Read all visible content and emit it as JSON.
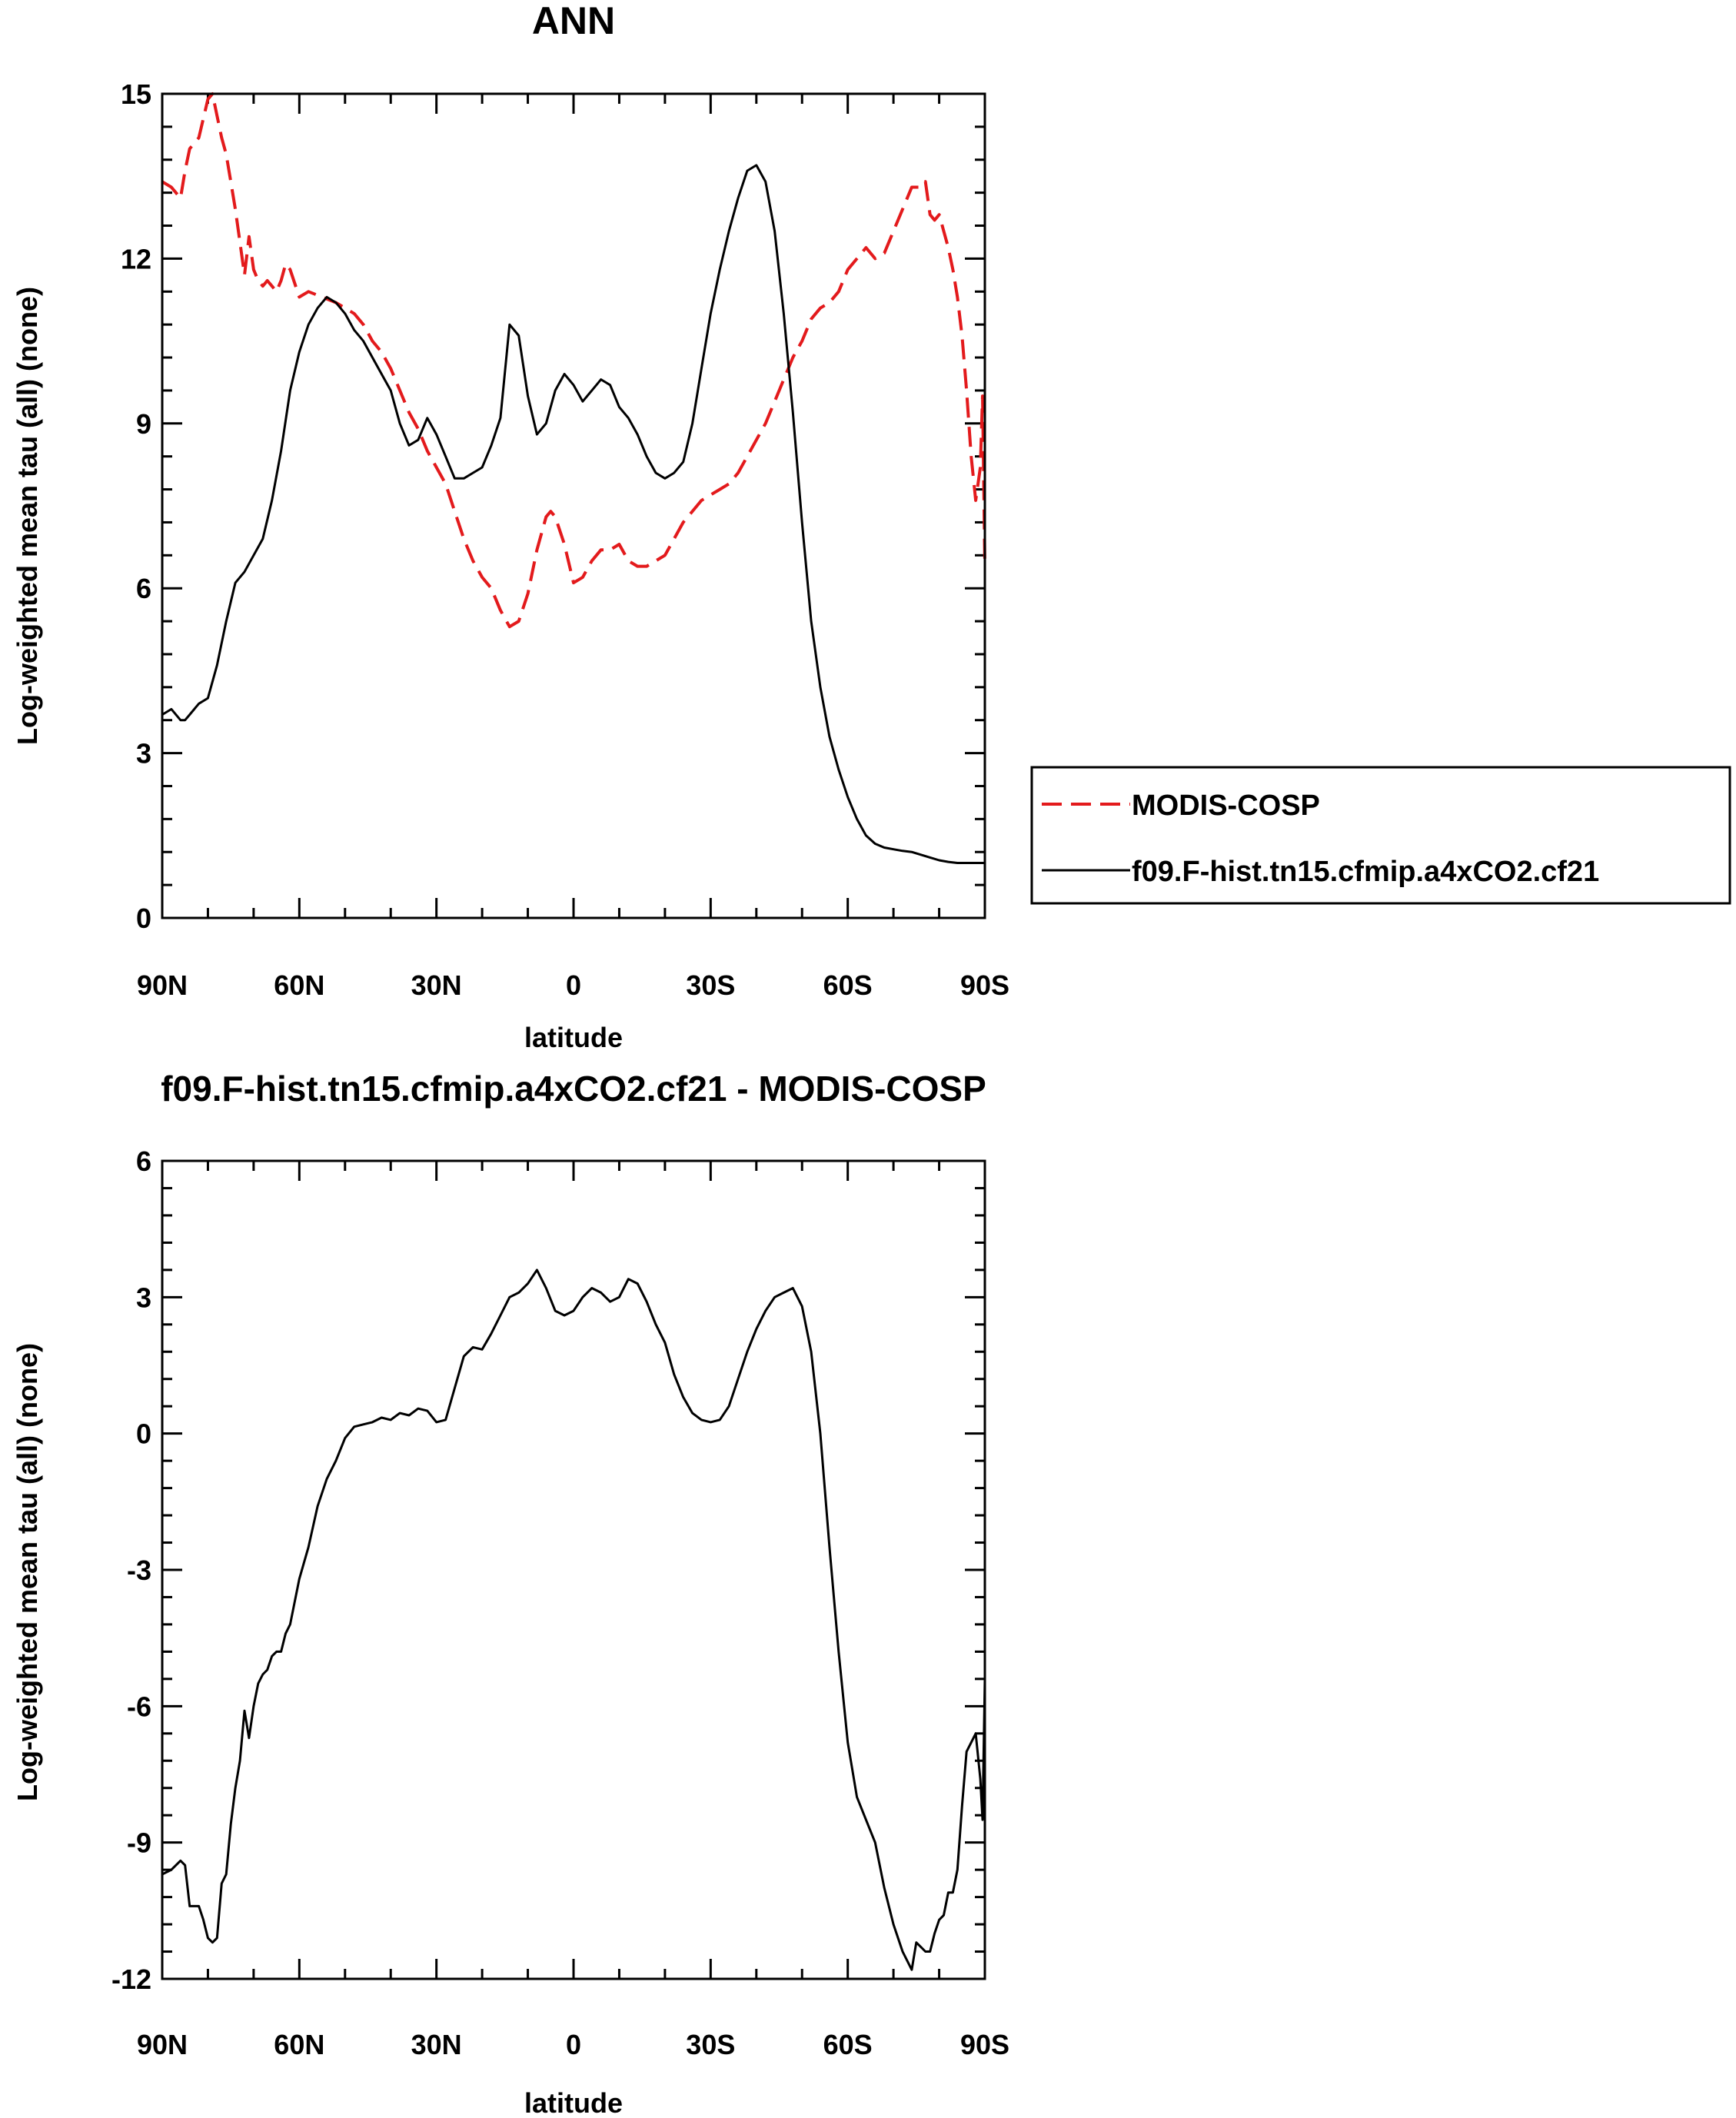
{
  "chart_data": [
    {
      "type": "line",
      "title": "ANN",
      "xlabel": "latitude",
      "ylabel": "Log-weighted mean tau (all) (none)",
      "xlim": [
        -90,
        90
      ],
      "ylim": [
        0,
        15
      ],
      "xticks": [
        {
          "value": -90,
          "label": "90N"
        },
        {
          "value": -60,
          "label": "60N"
        },
        {
          "value": -30,
          "label": "30N"
        },
        {
          "value": 0,
          "label": "0"
        },
        {
          "value": 30,
          "label": "30S"
        },
        {
          "value": 60,
          "label": "60S"
        },
        {
          "value": 90,
          "label": "90S"
        }
      ],
      "yticks": [
        {
          "value": 0,
          "label": "0"
        },
        {
          "value": 3,
          "label": "3"
        },
        {
          "value": 6,
          "label": "6"
        },
        {
          "value": 9,
          "label": "9"
        },
        {
          "value": 12,
          "label": "12"
        },
        {
          "value": 15,
          "label": "15"
        }
      ],
      "grid": false,
      "legend": "right",
      "series": [
        {
          "name": "MODIS-COSP",
          "color": "#e31a1c",
          "dash": "dashed",
          "x": [
            -90,
            -88,
            -86,
            -85,
            -84,
            -82,
            -80,
            -79,
            -78,
            -77,
            -76,
            -75,
            -74,
            -73,
            -72,
            -71,
            -70,
            -69,
            -68,
            -67,
            -66,
            -65,
            -64,
            -63,
            -62,
            -60,
            -58,
            -55,
            -52,
            -50,
            -48,
            -46,
            -44,
            -42,
            -40,
            -38,
            -36,
            -34,
            -32,
            -30,
            -28,
            -26,
            -24,
            -22,
            -20,
            -18,
            -16,
            -14,
            -12,
            -10,
            -8,
            -6,
            -5,
            -4,
            -2,
            0,
            2,
            4,
            6,
            8,
            10,
            12,
            14,
            16,
            18,
            20,
            22,
            24,
            26,
            28,
            30,
            32,
            34,
            36,
            38,
            40,
            42,
            44,
            46,
            48,
            50,
            52,
            54,
            56,
            58,
            60,
            62,
            64,
            66,
            68,
            70,
            72,
            74,
            76,
            77,
            78,
            79,
            80,
            81,
            82,
            83,
            84,
            85,
            86,
            87,
            88,
            89,
            89.5,
            90
          ],
          "y": [
            13.4,
            13.3,
            13.1,
            13.6,
            14.0,
            14.2,
            14.9,
            15.0,
            14.6,
            14.2,
            13.9,
            13.4,
            12.9,
            12.3,
            11.7,
            12.4,
            11.8,
            11.6,
            11.5,
            11.6,
            11.5,
            11.4,
            11.6,
            11.9,
            11.8,
            11.3,
            11.4,
            11.3,
            11.2,
            11.1,
            11.0,
            10.8,
            10.5,
            10.3,
            10.0,
            9.6,
            9.2,
            8.9,
            8.5,
            8.2,
            7.9,
            7.4,
            6.9,
            6.5,
            6.2,
            6.0,
            5.6,
            5.3,
            5.4,
            5.9,
            6.7,
            7.3,
            7.4,
            7.3,
            6.8,
            6.1,
            6.2,
            6.5,
            6.7,
            6.7,
            6.8,
            6.5,
            6.4,
            6.4,
            6.5,
            6.6,
            6.9,
            7.2,
            7.4,
            7.6,
            7.7,
            7.8,
            7.9,
            8.1,
            8.4,
            8.7,
            9.0,
            9.4,
            9.8,
            10.2,
            10.5,
            10.9,
            11.1,
            11.2,
            11.4,
            11.8,
            12.0,
            12.2,
            12.0,
            12.1,
            12.5,
            12.9,
            13.3,
            13.3,
            13.4,
            12.8,
            12.7,
            12.8,
            12.5,
            12.2,
            11.8,
            11.3,
            10.6,
            9.6,
            8.4,
            7.6,
            8.2,
            9.5,
            6.4
          ]
        },
        {
          "name": "f09.F-hist.tn15.cfmip.a4xCO2.cf21",
          "color": "#000000",
          "dash": "solid",
          "x": [
            -90,
            -88,
            -86,
            -85,
            -84,
            -82,
            -80,
            -78,
            -76,
            -74,
            -72,
            -70,
            -68,
            -66,
            -64,
            -62,
            -60,
            -58,
            -56,
            -54,
            -52,
            -50,
            -48,
            -46,
            -44,
            -42,
            -40,
            -38,
            -36,
            -34,
            -32,
            -30,
            -28,
            -26,
            -24,
            -22,
            -20,
            -18,
            -16,
            -14,
            -12,
            -10,
            -8,
            -6,
            -4,
            -2,
            0,
            2,
            4,
            6,
            8,
            10,
            12,
            14,
            16,
            18,
            20,
            22,
            24,
            26,
            28,
            30,
            32,
            34,
            36,
            38,
            40,
            42,
            44,
            46,
            48,
            50,
            52,
            54,
            56,
            58,
            60,
            62,
            64,
            66,
            68,
            70,
            72,
            74,
            76,
            78,
            80,
            82,
            84,
            86,
            88,
            90
          ],
          "y": [
            3.7,
            3.8,
            3.6,
            3.6,
            3.7,
            3.9,
            4.0,
            4.6,
            5.4,
            6.1,
            6.3,
            6.6,
            6.9,
            7.6,
            8.5,
            9.6,
            10.3,
            10.8,
            11.1,
            11.3,
            11.2,
            11.0,
            10.7,
            10.5,
            10.2,
            9.9,
            9.6,
            9.0,
            8.6,
            8.7,
            9.1,
            8.8,
            8.4,
            8.0,
            8.0,
            8.1,
            8.2,
            8.6,
            9.1,
            10.8,
            10.6,
            9.5,
            8.8,
            9.0,
            9.6,
            9.9,
            9.7,
            9.4,
            9.6,
            9.8,
            9.7,
            9.3,
            9.1,
            8.8,
            8.4,
            8.1,
            8.0,
            8.1,
            8.3,
            9.0,
            10.0,
            11.0,
            11.8,
            12.5,
            13.1,
            13.6,
            13.7,
            13.4,
            12.5,
            11.0,
            9.2,
            7.2,
            5.4,
            4.2,
            3.3,
            2.7,
            2.2,
            1.8,
            1.5,
            1.35,
            1.28,
            1.25,
            1.22,
            1.2,
            1.15,
            1.1,
            1.05,
            1.02,
            1.0,
            1.0,
            1.0,
            1.0
          ]
        }
      ]
    },
    {
      "type": "line",
      "title": "f09.F-hist.tn15.cfmip.a4xCO2.cf21 - MODIS-COSP",
      "xlabel": "latitude",
      "ylabel": "Log-weighted mean tau (all) (none)",
      "xlim": [
        -90,
        90
      ],
      "ylim": [
        -12,
        6
      ],
      "xticks": [
        {
          "value": -90,
          "label": "90N"
        },
        {
          "value": -60,
          "label": "60N"
        },
        {
          "value": -30,
          "label": "30N"
        },
        {
          "value": 0,
          "label": "0"
        },
        {
          "value": 30,
          "label": "30S"
        },
        {
          "value": 60,
          "label": "60S"
        },
        {
          "value": 90,
          "label": "90S"
        }
      ],
      "yticks": [
        {
          "value": -12,
          "label": "-12"
        },
        {
          "value": -9,
          "label": "-9"
        },
        {
          "value": -6,
          "label": "-6"
        },
        {
          "value": -3,
          "label": "-3"
        },
        {
          "value": 0,
          "label": "0"
        },
        {
          "value": 3,
          "label": "3"
        },
        {
          "value": 6,
          "label": "6"
        }
      ],
      "grid": false,
      "series": [
        {
          "name": "",
          "color": "#000000",
          "dash": "solid",
          "x": [
            -90,
            -88,
            -86,
            -85,
            -84,
            -82,
            -81,
            -80,
            -79,
            -78,
            -77,
            -76,
            -75,
            -74,
            -73,
            -72,
            -71,
            -70,
            -69,
            -68,
            -67,
            -66,
            -65,
            -64,
            -63,
            -62,
            -60,
            -58,
            -56,
            -54,
            -52,
            -50,
            -48,
            -46,
            -44,
            -42,
            -40,
            -38,
            -36,
            -34,
            -32,
            -30,
            -28,
            -26,
            -24,
            -22,
            -20,
            -18,
            -16,
            -14,
            -12,
            -10,
            -8,
            -6,
            -4,
            -2,
            0,
            2,
            4,
            6,
            8,
            10,
            12,
            14,
            16,
            18,
            20,
            22,
            24,
            26,
            28,
            30,
            32,
            34,
            36,
            38,
            40,
            42,
            44,
            46,
            48,
            50,
            52,
            54,
            56,
            58,
            60,
            62,
            64,
            66,
            68,
            70,
            72,
            74,
            75,
            76,
            77,
            78,
            79,
            80,
            81,
            82,
            83,
            84,
            85,
            86,
            87,
            88,
            89,
            89.5,
            90
          ],
          "y": [
            -9.7,
            -9.6,
            -9.4,
            -9.5,
            -10.4,
            -10.4,
            -10.7,
            -11.1,
            -11.2,
            -11.1,
            -9.9,
            -9.7,
            -8.6,
            -7.8,
            -7.2,
            -6.1,
            -6.7,
            -6.0,
            -5.5,
            -5.3,
            -5.2,
            -4.9,
            -4.8,
            -4.8,
            -4.4,
            -4.2,
            -3.2,
            -2.5,
            -1.6,
            -1.0,
            -0.6,
            -0.1,
            0.15,
            0.2,
            0.25,
            0.35,
            0.3,
            0.45,
            0.4,
            0.55,
            0.5,
            0.25,
            0.3,
            1.0,
            1.7,
            1.9,
            1.85,
            2.2,
            2.6,
            3.0,
            3.1,
            3.3,
            3.6,
            3.2,
            2.7,
            2.6,
            2.7,
            3.0,
            3.2,
            3.1,
            2.9,
            3.0,
            3.4,
            3.3,
            2.9,
            2.4,
            2.0,
            1.3,
            0.8,
            0.45,
            0.3,
            0.25,
            0.3,
            0.6,
            1.2,
            1.8,
            2.3,
            2.7,
            3.0,
            3.1,
            3.2,
            2.8,
            1.8,
            0.0,
            -2.5,
            -4.8,
            -6.8,
            -8.0,
            -8.5,
            -9.0,
            -10.0,
            -10.8,
            -11.4,
            -11.8,
            -11.2,
            -11.3,
            -11.4,
            -11.4,
            -11.0,
            -10.7,
            -10.6,
            -10.1,
            -10.1,
            -9.6,
            -8.2,
            -7.0,
            -6.8,
            -6.6,
            -7.6,
            -8.5,
            -5.4
          ]
        }
      ]
    }
  ]
}
